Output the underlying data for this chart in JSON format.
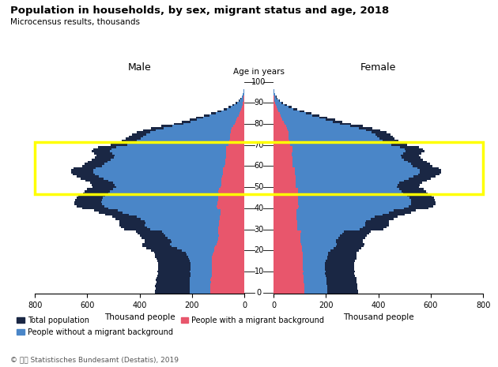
{
  "title": "Population in households, by sex, migrant status and age, 2018",
  "subtitle": "Microcensus results, thousands",
  "age_labels": [
    0,
    10,
    20,
    30,
    40,
    50,
    60,
    70,
    80,
    90,
    100
  ],
  "color_total": "#1a2744",
  "color_no_migrant": "#4a86c8",
  "color_migrant": "#e8566c",
  "color_highlight": "#ffff00",
  "ages": [
    0,
    1,
    2,
    3,
    4,
    5,
    6,
    7,
    8,
    9,
    10,
    11,
    12,
    13,
    14,
    15,
    16,
    17,
    18,
    19,
    20,
    21,
    22,
    23,
    24,
    25,
    26,
    27,
    28,
    29,
    30,
    31,
    32,
    33,
    34,
    35,
    36,
    37,
    38,
    39,
    40,
    41,
    42,
    43,
    44,
    45,
    46,
    47,
    48,
    49,
    50,
    51,
    52,
    53,
    54,
    55,
    56,
    57,
    58,
    59,
    60,
    61,
    62,
    63,
    64,
    65,
    66,
    67,
    68,
    69,
    70,
    71,
    72,
    73,
    74,
    75,
    76,
    77,
    78,
    79,
    80,
    81,
    82,
    83,
    84,
    85,
    86,
    87,
    88,
    89,
    90,
    91,
    92,
    93,
    94,
    95,
    96,
    97,
    98,
    99
  ],
  "male_total": [
    340,
    340,
    339,
    340,
    338,
    336,
    338,
    336,
    331,
    329,
    332,
    330,
    328,
    329,
    328,
    332,
    336,
    340,
    342,
    343,
    356,
    374,
    389,
    389,
    380,
    381,
    393,
    400,
    407,
    413,
    460,
    472,
    478,
    476,
    476,
    491,
    505,
    532,
    556,
    573,
    620,
    640,
    648,
    648,
    646,
    640,
    633,
    616,
    611,
    600,
    580,
    583,
    590,
    608,
    624,
    640,
    655,
    660,
    660,
    651,
    620,
    610,
    597,
    582,
    570,
    565,
    573,
    583,
    578,
    560,
    510,
    485,
    468,
    453,
    442,
    430,
    412,
    388,
    355,
    318,
    270,
    238,
    210,
    183,
    155,
    128,
    103,
    80,
    60,
    44,
    32,
    22,
    15,
    10,
    6,
    4,
    2,
    1,
    1,
    0
  ],
  "male_no_migrant": [
    210,
    210,
    209,
    210,
    209,
    208,
    209,
    208,
    206,
    204,
    207,
    205,
    204,
    205,
    205,
    208,
    212,
    216,
    220,
    224,
    240,
    258,
    278,
    283,
    278,
    280,
    293,
    302,
    308,
    313,
    360,
    373,
    380,
    378,
    380,
    396,
    412,
    440,
    466,
    482,
    518,
    535,
    545,
    546,
    545,
    540,
    533,
    518,
    512,
    502,
    490,
    494,
    502,
    520,
    537,
    555,
    572,
    578,
    578,
    569,
    545,
    536,
    524,
    510,
    499,
    495,
    503,
    512,
    507,
    490,
    448,
    426,
    410,
    397,
    387,
    376,
    360,
    338,
    308,
    275,
    233,
    205,
    180,
    157,
    133,
    110,
    88,
    68,
    51,
    38,
    27,
    19,
    13,
    8,
    5,
    3,
    2,
    1,
    1,
    0
  ],
  "male_migrant": [
    130,
    130,
    130,
    130,
    129,
    128,
    129,
    128,
    125,
    125,
    125,
    125,
    124,
    124,
    123,
    124,
    124,
    124,
    122,
    119,
    116,
    116,
    111,
    106,
    102,
    101,
    100,
    98,
    99,
    100,
    100,
    99,
    98,
    98,
    96,
    95,
    93,
    92,
    90,
    91,
    102,
    105,
    103,
    102,
    101,
    100,
    100,
    98,
    99,
    98,
    90,
    89,
    88,
    88,
    87,
    85,
    83,
    82,
    82,
    82,
    75,
    74,
    73,
    72,
    71,
    70,
    70,
    71,
    71,
    70,
    62,
    59,
    58,
    56,
    55,
    54,
    52,
    50,
    47,
    43,
    37,
    33,
    30,
    26,
    22,
    18,
    15,
    12,
    9,
    6,
    5,
    3,
    2,
    2,
    1,
    1,
    0,
    0,
    0,
    0
  ],
  "female_total": [
    323,
    322,
    321,
    321,
    319,
    316,
    317,
    316,
    311,
    308,
    311,
    308,
    307,
    307,
    307,
    311,
    316,
    318,
    318,
    318,
    325,
    335,
    345,
    347,
    340,
    341,
    350,
    355,
    364,
    372,
    420,
    432,
    440,
    440,
    441,
    458,
    474,
    502,
    526,
    544,
    591,
    610,
    618,
    618,
    617,
    611,
    604,
    588,
    582,
    572,
    555,
    558,
    566,
    584,
    601,
    618,
    634,
    640,
    640,
    632,
    605,
    596,
    584,
    570,
    560,
    556,
    565,
    575,
    571,
    554,
    510,
    490,
    476,
    463,
    454,
    445,
    430,
    408,
    378,
    342,
    295,
    263,
    234,
    205,
    175,
    145,
    117,
    91,
    68,
    50,
    35,
    24,
    16,
    11,
    7,
    4,
    2,
    1,
    1,
    0
  ],
  "female_no_migrant": [
    205,
    205,
    204,
    204,
    203,
    201,
    202,
    201,
    198,
    196,
    198,
    196,
    195,
    195,
    196,
    199,
    204,
    206,
    207,
    208,
    218,
    228,
    238,
    242,
    237,
    239,
    248,
    254,
    262,
    268,
    330,
    342,
    350,
    350,
    352,
    370,
    386,
    415,
    440,
    457,
    497,
    515,
    524,
    524,
    524,
    518,
    511,
    496,
    490,
    480,
    470,
    473,
    481,
    499,
    517,
    535,
    552,
    558,
    558,
    550,
    532,
    524,
    512,
    499,
    489,
    486,
    495,
    504,
    500,
    483,
    448,
    430,
    416,
    405,
    396,
    388,
    374,
    354,
    326,
    293,
    253,
    225,
    200,
    174,
    148,
    122,
    98,
    76,
    57,
    42,
    29,
    20,
    13,
    9,
    6,
    3,
    2,
    1,
    1,
    0
  ],
  "female_migrant": [
    118,
    117,
    117,
    117,
    116,
    115,
    115,
    115,
    113,
    112,
    113,
    112,
    112,
    112,
    111,
    112,
    112,
    112,
    111,
    110,
    107,
    107,
    107,
    105,
    103,
    102,
    102,
    101,
    102,
    104,
    90,
    90,
    90,
    90,
    89,
    88,
    88,
    87,
    86,
    87,
    94,
    95,
    94,
    94,
    93,
    93,
    93,
    92,
    92,
    92,
    85,
    85,
    85,
    85,
    84,
    83,
    82,
    82,
    82,
    82,
    73,
    72,
    72,
    71,
    71,
    70,
    70,
    71,
    71,
    71,
    62,
    60,
    60,
    58,
    58,
    57,
    56,
    54,
    52,
    49,
    42,
    38,
    34,
    31,
    27,
    23,
    19,
    15,
    11,
    8,
    6,
    4,
    3,
    2,
    1,
    1,
    0,
    0,
    0,
    0
  ],
  "xlim": 800,
  "highlight_age_min": 47,
  "highlight_age_max": 71
}
